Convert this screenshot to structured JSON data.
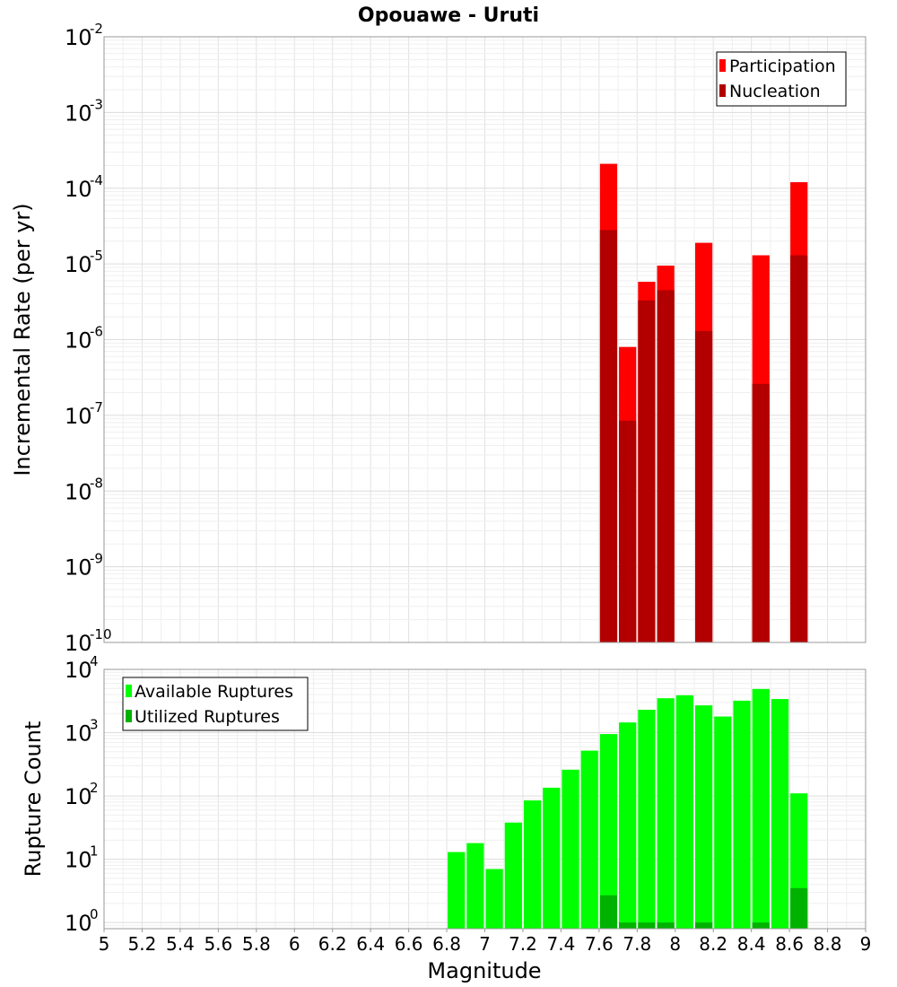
{
  "chart_data": [
    {
      "type": "bar",
      "title": "Opouawe - Uruti",
      "xlabel": "Magnitude",
      "ylabel": "Incremental Rate (per yr)",
      "y_scale": "log",
      "ylim": [
        1e-10,
        0.01
      ],
      "xlim": [
        5,
        9
      ],
      "grid": true,
      "legend_position": "top-right",
      "bin_width": 0.1,
      "x": [
        7.65,
        7.75,
        7.85,
        7.95,
        8.15,
        8.45,
        8.65
      ],
      "series": [
        {
          "name": "Participation",
          "color": "#ff0000",
          "values": [
            0.00021,
            8e-07,
            5.8e-06,
            9.5e-06,
            1.9e-05,
            1.3e-05,
            0.00012
          ]
        },
        {
          "name": "Nucleation",
          "color": "#b20000",
          "values": [
            2.8e-05,
            8.5e-08,
            3.3e-06,
            4.5e-06,
            1.3e-06,
            2.6e-07,
            1.3e-05
          ]
        }
      ],
      "y_ticks": [
        {
          "base": "10",
          "exp": "-10"
        },
        {
          "base": "10",
          "exp": "-9"
        },
        {
          "base": "10",
          "exp": "-8"
        },
        {
          "base": "10",
          "exp": "-7"
        },
        {
          "base": "10",
          "exp": "-6"
        },
        {
          "base": "10",
          "exp": "-5"
        },
        {
          "base": "10",
          "exp": "-4"
        },
        {
          "base": "10",
          "exp": "-3"
        },
        {
          "base": "10",
          "exp": "-2"
        }
      ]
    },
    {
      "type": "bar",
      "xlabel": "Magnitude",
      "ylabel": "Rupture Count",
      "y_scale": "log",
      "ylim": [
        0.8,
        10000
      ],
      "xlim": [
        5,
        9
      ],
      "grid": true,
      "legend_position": "top-left",
      "bin_width": 0.1,
      "x": [
        6.85,
        6.95,
        7.05,
        7.15,
        7.25,
        7.35,
        7.45,
        7.55,
        7.65,
        7.75,
        7.85,
        7.95,
        8.05,
        8.15,
        8.25,
        8.35,
        8.45,
        8.55,
        8.65
      ],
      "series": [
        {
          "name": "Available Ruptures",
          "color": "#00ff00",
          "values": [
            13,
            18,
            7,
            38,
            85,
            135,
            260,
            520,
            950,
            1450,
            2300,
            3500,
            3900,
            2700,
            1800,
            3200,
            4900,
            3400,
            110
          ]
        },
        {
          "name": "Utilized Ruptures",
          "color": "#00b200",
          "values": [
            0,
            0,
            0,
            0,
            0,
            0,
            0,
            0,
            2.7,
            1,
            1,
            1,
            0,
            1,
            0,
            0,
            1,
            0,
            3.5
          ]
        }
      ],
      "y_ticks": [
        {
          "base": "10",
          "exp": "0"
        },
        {
          "base": "10",
          "exp": "1"
        },
        {
          "base": "10",
          "exp": "2"
        },
        {
          "base": "10",
          "exp": "3"
        },
        {
          "base": "10",
          "exp": "4"
        }
      ],
      "x_ticks": [
        "5",
        "5.2",
        "5.4",
        "5.6",
        "5.8",
        "6",
        "6.2",
        "6.4",
        "6.6",
        "6.8",
        "7",
        "7.2",
        "7.4",
        "7.6",
        "7.8",
        "8",
        "8.2",
        "8.4",
        "8.6",
        "8.8",
        "9"
      ]
    }
  ]
}
